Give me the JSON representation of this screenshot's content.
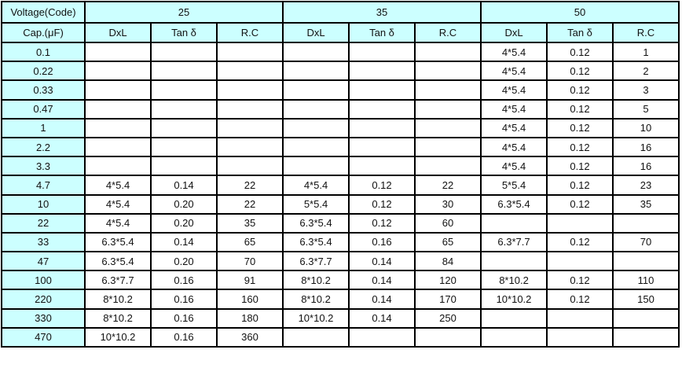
{
  "header": {
    "voltage_label": "Voltage(Code)",
    "cap_label": "Cap.(μF)",
    "voltages": [
      "25",
      "35",
      "50"
    ],
    "subcolumns": [
      "DxL",
      "Tan δ",
      "R.C"
    ]
  },
  "colors": {
    "header_bg": "#ccffff",
    "border": "#000000"
  },
  "rows": [
    {
      "cap": "0.1",
      "cells": [
        "",
        "",
        "",
        "",
        "",
        "",
        "4*5.4",
        "0.12",
        "1"
      ]
    },
    {
      "cap": "0.22",
      "cells": [
        "",
        "",
        "",
        "",
        "",
        "",
        "4*5.4",
        "0.12",
        "2"
      ]
    },
    {
      "cap": "0.33",
      "cells": [
        "",
        "",
        "",
        "",
        "",
        "",
        "4*5.4",
        "0.12",
        "3"
      ]
    },
    {
      "cap": "0.47",
      "cells": [
        "",
        "",
        "",
        "",
        "",
        "",
        "4*5.4",
        "0.12",
        "5"
      ]
    },
    {
      "cap": "1",
      "cells": [
        "",
        "",
        "",
        "",
        "",
        "",
        "4*5.4",
        "0.12",
        "10"
      ]
    },
    {
      "cap": "2.2",
      "cells": [
        "",
        "",
        "",
        "",
        "",
        "",
        "4*5.4",
        "0.12",
        "16"
      ]
    },
    {
      "cap": "3.3",
      "cells": [
        "",
        "",
        "",
        "",
        "",
        "",
        "4*5.4",
        "0.12",
        "16"
      ]
    },
    {
      "cap": "4.7",
      "cells": [
        "4*5.4",
        "0.14",
        "22",
        "4*5.4",
        "0.12",
        "22",
        "5*5.4",
        "0.12",
        "23"
      ]
    },
    {
      "cap": "10",
      "cells": [
        "4*5.4",
        "0.20",
        "22",
        "5*5.4",
        "0.12",
        "30",
        "6.3*5.4",
        "0.12",
        "35"
      ]
    },
    {
      "cap": "22",
      "cells": [
        "4*5.4",
        "0.20",
        "35",
        "6.3*5.4",
        "0.12",
        "60",
        "",
        "",
        ""
      ]
    },
    {
      "cap": "33",
      "cells": [
        "6.3*5.4",
        "0.14",
        "65",
        "6.3*5.4",
        "0.16",
        "65",
        "6.3*7.7",
        "0.12",
        "70"
      ]
    },
    {
      "cap": "47",
      "cells": [
        "6.3*5.4",
        "0.20",
        "70",
        "6.3*7.7",
        "0.14",
        "84",
        "",
        "",
        ""
      ]
    },
    {
      "cap": "100",
      "cells": [
        "6.3*7.7",
        "0.16",
        "91",
        "8*10.2",
        "0.14",
        "120",
        "8*10.2",
        "0.12",
        "110"
      ]
    },
    {
      "cap": "220",
      "cells": [
        "8*10.2",
        "0.16",
        "160",
        "8*10.2",
        "0.14",
        "170",
        "10*10.2",
        "0.12",
        "150"
      ]
    },
    {
      "cap": "330",
      "cells": [
        "8*10.2",
        "0.16",
        "180",
        "10*10.2",
        "0.14",
        "250",
        "",
        "",
        ""
      ]
    },
    {
      "cap": "470",
      "cells": [
        "10*10.2",
        "0.16",
        "360",
        "",
        "",
        "",
        "",
        "",
        ""
      ]
    }
  ]
}
